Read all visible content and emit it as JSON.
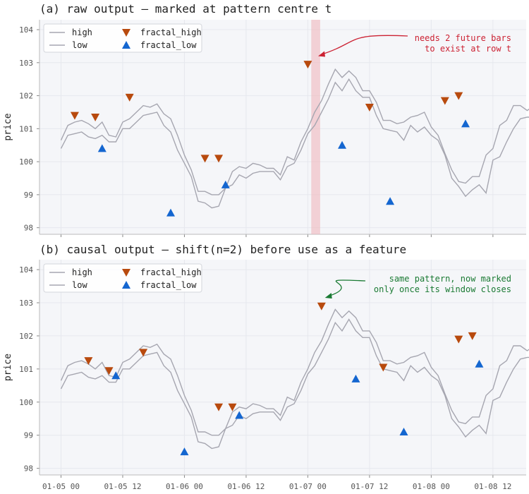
{
  "chart_data": [
    {
      "type": "line",
      "title": "(a) raw output — marked at pattern centre t",
      "ylabel": "price",
      "xlabel": "",
      "ylim": [
        97.8,
        104.3
      ],
      "yticks": [
        98,
        99,
        100,
        101,
        102,
        103,
        104
      ],
      "x_tick_labels": [],
      "grid": true,
      "legend_position": "top-left",
      "highlight_band": {
        "x_start": 36.5,
        "x_end": 37.8,
        "color": "#f0b8bc"
      },
      "annotation": {
        "lines": [
          "needs 2 future bars",
          "to exist at row t"
        ],
        "color": "#cc2233",
        "x": 37.5,
        "y": 103.2
      },
      "series": [
        {
          "name": "high",
          "kind": "line",
          "color": "#a6a6b0"
        },
        {
          "name": "low",
          "kind": "line",
          "color": "#a6a6b0"
        },
        {
          "name": "fractal_high",
          "kind": "marker",
          "color": "#b84a0e",
          "points": [
            [
              2,
              101.4
            ],
            [
              5,
              101.35
            ],
            [
              10,
              101.95
            ],
            [
              21,
              100.1
            ],
            [
              23,
              100.1
            ],
            [
              36,
              102.95
            ],
            [
              45,
              101.65
            ],
            [
              56,
              101.85
            ],
            [
              58,
              102.0
            ]
          ]
        },
        {
          "name": "fractal_low",
          "kind": "marker",
          "color": "#1466d0",
          "points": [
            [
              6,
              100.4
            ],
            [
              16,
              98.45
            ],
            [
              24,
              99.3
            ],
            [
              41,
              100.5
            ],
            [
              48,
              98.8
            ],
            [
              59,
              101.15
            ]
          ]
        }
      ]
    },
    {
      "type": "line",
      "title": "(b) causal output — shift(n=2) before use as a feature",
      "ylabel": "price",
      "xlabel": "",
      "ylim": [
        97.8,
        104.3
      ],
      "yticks": [
        98,
        99,
        100,
        101,
        102,
        103,
        104
      ],
      "x_tick_labels": [
        "01-05 00",
        "01-05 12",
        "01-06 00",
        "01-06 12",
        "01-07 00",
        "01-07 12",
        "01-08 00",
        "01-08 12"
      ],
      "grid": true,
      "legend_position": "top-left",
      "annotation": {
        "lines": [
          "same pattern, now marked",
          "only once its window closes"
        ],
        "color": "#1a7a33",
        "x": 38.5,
        "y": 103.15
      },
      "series": [
        {
          "name": "high",
          "kind": "line",
          "color": "#a6a6b0"
        },
        {
          "name": "low",
          "kind": "line",
          "color": "#a6a6b0"
        },
        {
          "name": "fractal_high",
          "kind": "marker",
          "color": "#b84a0e",
          "points": [
            [
              4,
              101.25
            ],
            [
              7,
              100.95
            ],
            [
              12,
              101.5
            ],
            [
              23,
              99.85
            ],
            [
              25,
              99.85
            ],
            [
              38,
              102.9
            ],
            [
              47,
              101.05
            ],
            [
              58,
              101.9
            ],
            [
              60,
              102.0
            ]
          ]
        },
        {
          "name": "fractal_low",
          "kind": "marker",
          "color": "#1466d0",
          "points": [
            [
              8,
              100.8
            ],
            [
              18,
              98.5
            ],
            [
              26,
              99.6
            ],
            [
              43,
              100.7
            ],
            [
              50,
              99.1
            ],
            [
              61,
              101.15
            ]
          ]
        }
      ]
    }
  ],
  "shared_price_series": {
    "x": [
      0,
      1,
      2,
      3,
      4,
      5,
      6,
      7,
      8,
      9,
      10,
      11,
      12,
      13,
      14,
      15,
      16,
      17,
      18,
      19,
      20,
      21,
      22,
      23,
      24,
      25,
      26,
      27,
      28,
      29,
      30,
      31,
      32,
      33,
      34,
      35,
      36,
      37,
      38,
      39,
      40,
      41,
      42,
      43,
      44,
      45,
      46,
      47,
      48,
      49,
      50,
      51,
      52,
      53,
      54,
      55,
      56,
      57,
      58,
      59,
      60,
      61,
      62,
      63,
      64,
      65,
      66
    ],
    "high": [
      100.65,
      101.1,
      101.2,
      101.25,
      101.15,
      101.0,
      101.2,
      100.8,
      100.75,
      101.2,
      101.3,
      101.5,
      101.7,
      101.65,
      101.75,
      101.45,
      101.3,
      100.8,
      100.2,
      99.75,
      99.1,
      99.1,
      99.0,
      99.0,
      99.2,
      99.7,
      99.85,
      99.8,
      99.95,
      99.9,
      99.8,
      99.8,
      99.6,
      100.15,
      100.05,
      100.6,
      101.0,
      101.5,
      101.85,
      102.35,
      102.8,
      102.55,
      102.75,
      102.55,
      102.15,
      102.15,
      101.8,
      101.25,
      101.25,
      101.15,
      101.2,
      101.35,
      101.4,
      101.5,
      101.05,
      100.8,
      100.25,
      99.75,
      99.4,
      99.35,
      99.55,
      99.55,
      100.2,
      100.4,
      101.1,
      101.25,
      101.7
    ],
    "low": [
      100.4,
      100.8,
      100.85,
      100.9,
      100.75,
      100.7,
      100.8,
      100.6,
      100.6,
      101.0,
      101.0,
      101.2,
      101.4,
      101.45,
      101.5,
      101.1,
      100.9,
      100.35,
      99.95,
      99.55,
      98.8,
      98.75,
      98.6,
      98.65,
      99.2,
      99.3,
      99.6,
      99.5,
      99.65,
      99.7,
      99.7,
      99.7,
      99.45,
      99.85,
      99.95,
      100.35,
      100.85,
      101.1,
      101.5,
      101.9,
      102.4,
      102.15,
      102.5,
      102.15,
      101.95,
      101.95,
      101.4,
      101.0,
      100.95,
      100.9,
      100.65,
      101.1,
      100.9,
      101.05,
      100.8,
      100.65,
      100.2,
      99.5,
      99.25,
      98.95,
      99.15,
      99.3,
      99.05,
      100.05,
      100.15,
      100.6,
      101.0
    ]
  },
  "legend": {
    "labels": [
      "high",
      "low",
      "fractal_high",
      "fractal_low"
    ]
  }
}
